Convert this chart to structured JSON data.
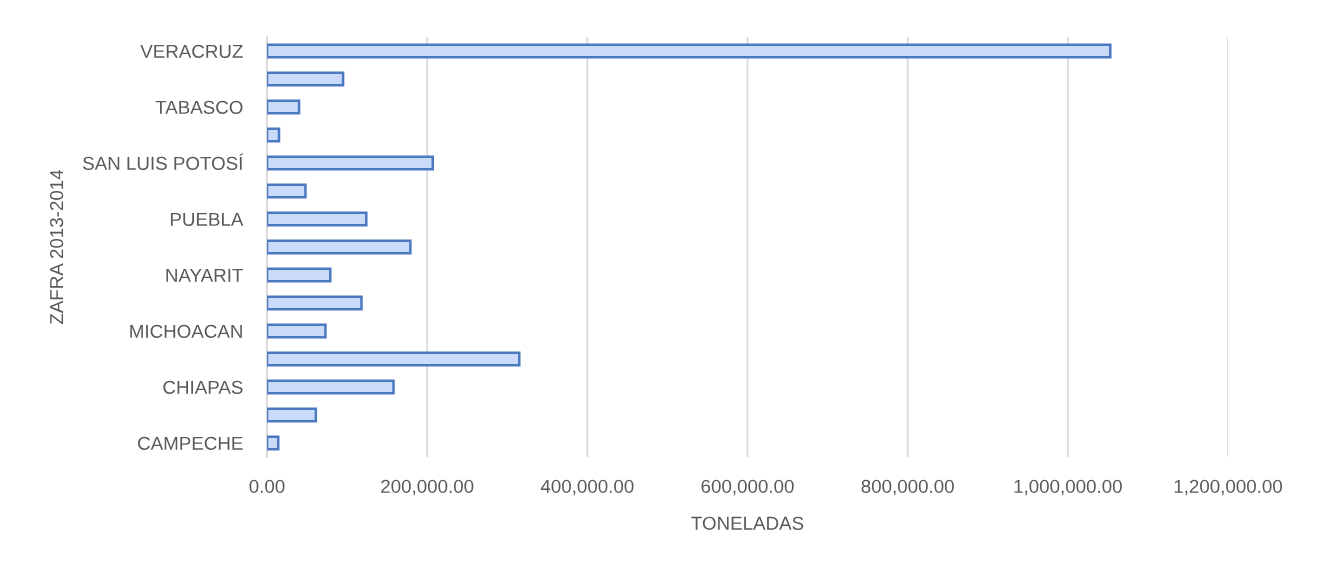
{
  "chart_data": {
    "type": "bar",
    "orientation": "horizontal",
    "xlabel": "TONELADAS",
    "ylabel": "ZAFRA 2013-2014",
    "categories": [
      "VERACRUZ",
      null,
      "TABASCO",
      null,
      "SAN LUIS POTOSÍ",
      null,
      "PUEBLA",
      null,
      "NAYARIT",
      null,
      "MICHOACAN",
      null,
      "CHIAPAS",
      null,
      "CAMPECHE"
    ],
    "values": [
      1053000,
      95000,
      40000,
      15000,
      207000,
      48000,
      124000,
      179000,
      79000,
      118000,
      73000,
      315000,
      158000,
      61000,
      14000
    ],
    "color": "#c9dbf8",
    "xlim": [
      0,
      1200000
    ],
    "xticks": [
      {
        "value": 0,
        "label": "0.00"
      },
      {
        "value": 200000,
        "label": "200,000.00"
      },
      {
        "value": 400000,
        "label": "400,000.00"
      },
      {
        "value": 600000,
        "label": "600,000.00"
      },
      {
        "value": 800000,
        "label": "800,000.00"
      },
      {
        "value": 1000000,
        "label": "1,000,000.00"
      },
      {
        "value": 1200000,
        "label": "1,200,000.00"
      }
    ],
    "grid": "x"
  }
}
